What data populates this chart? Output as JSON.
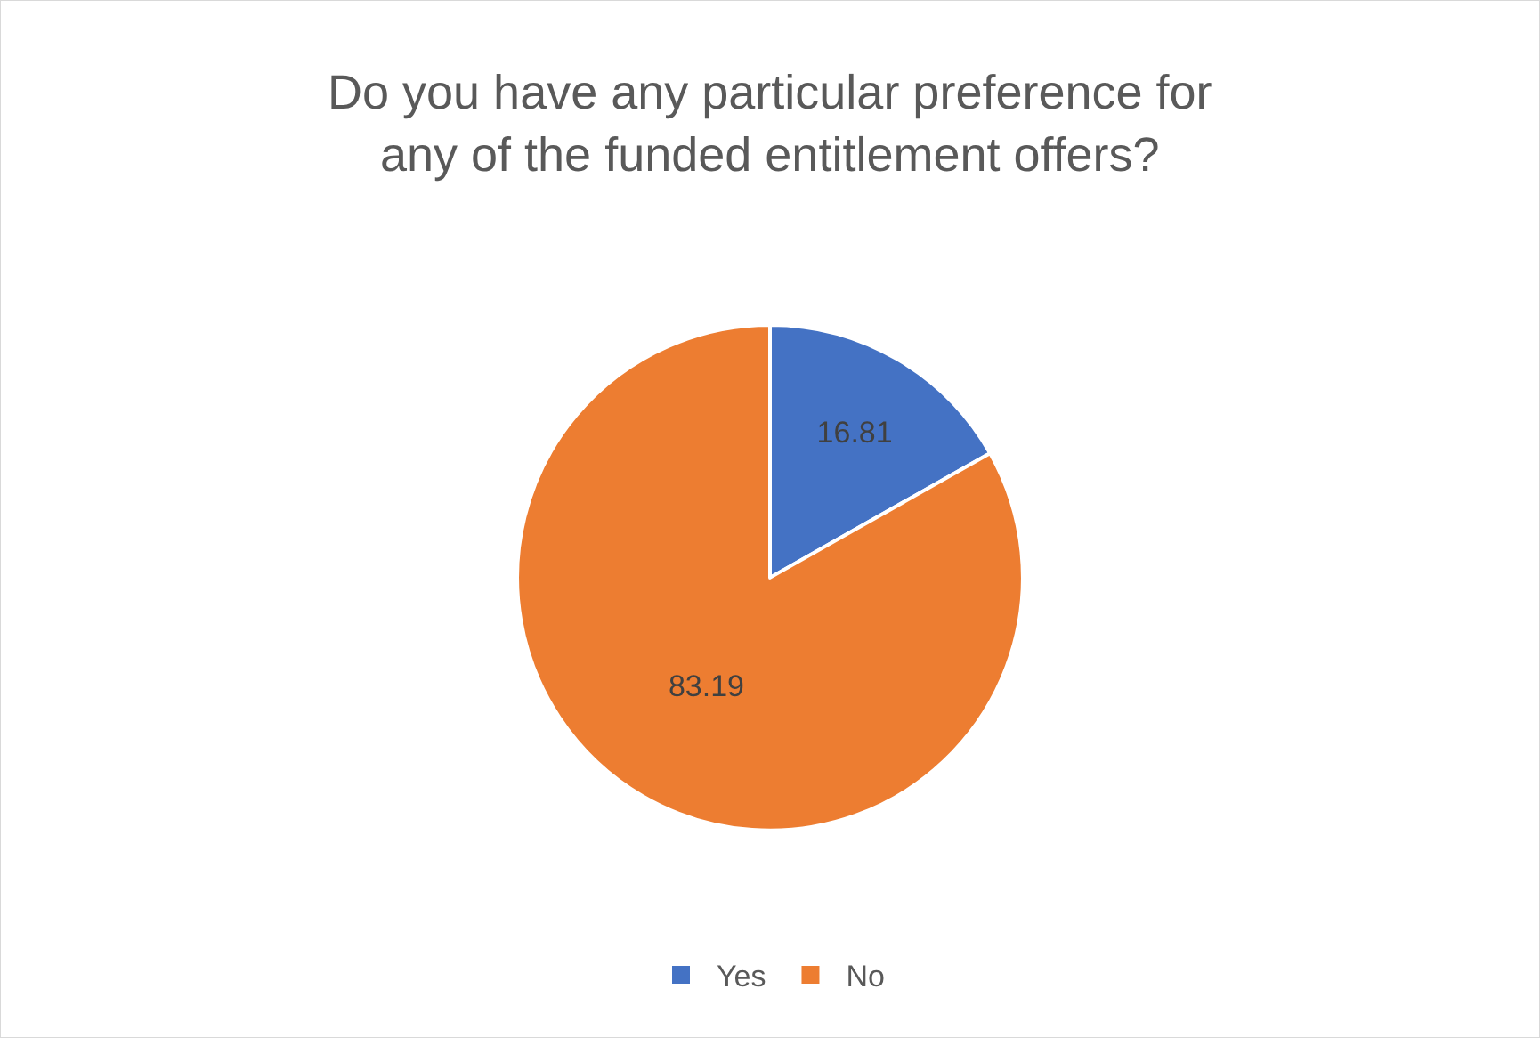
{
  "chart_data": {
    "type": "pie",
    "title": "Do you have any particular preference for any of the funded entitlement offers?",
    "categories": [
      "Yes",
      "No"
    ],
    "values": [
      16.81,
      83.19
    ],
    "colors": [
      "#4472c4",
      "#ed7d31"
    ],
    "data_labels": true,
    "legend": "bottom"
  }
}
